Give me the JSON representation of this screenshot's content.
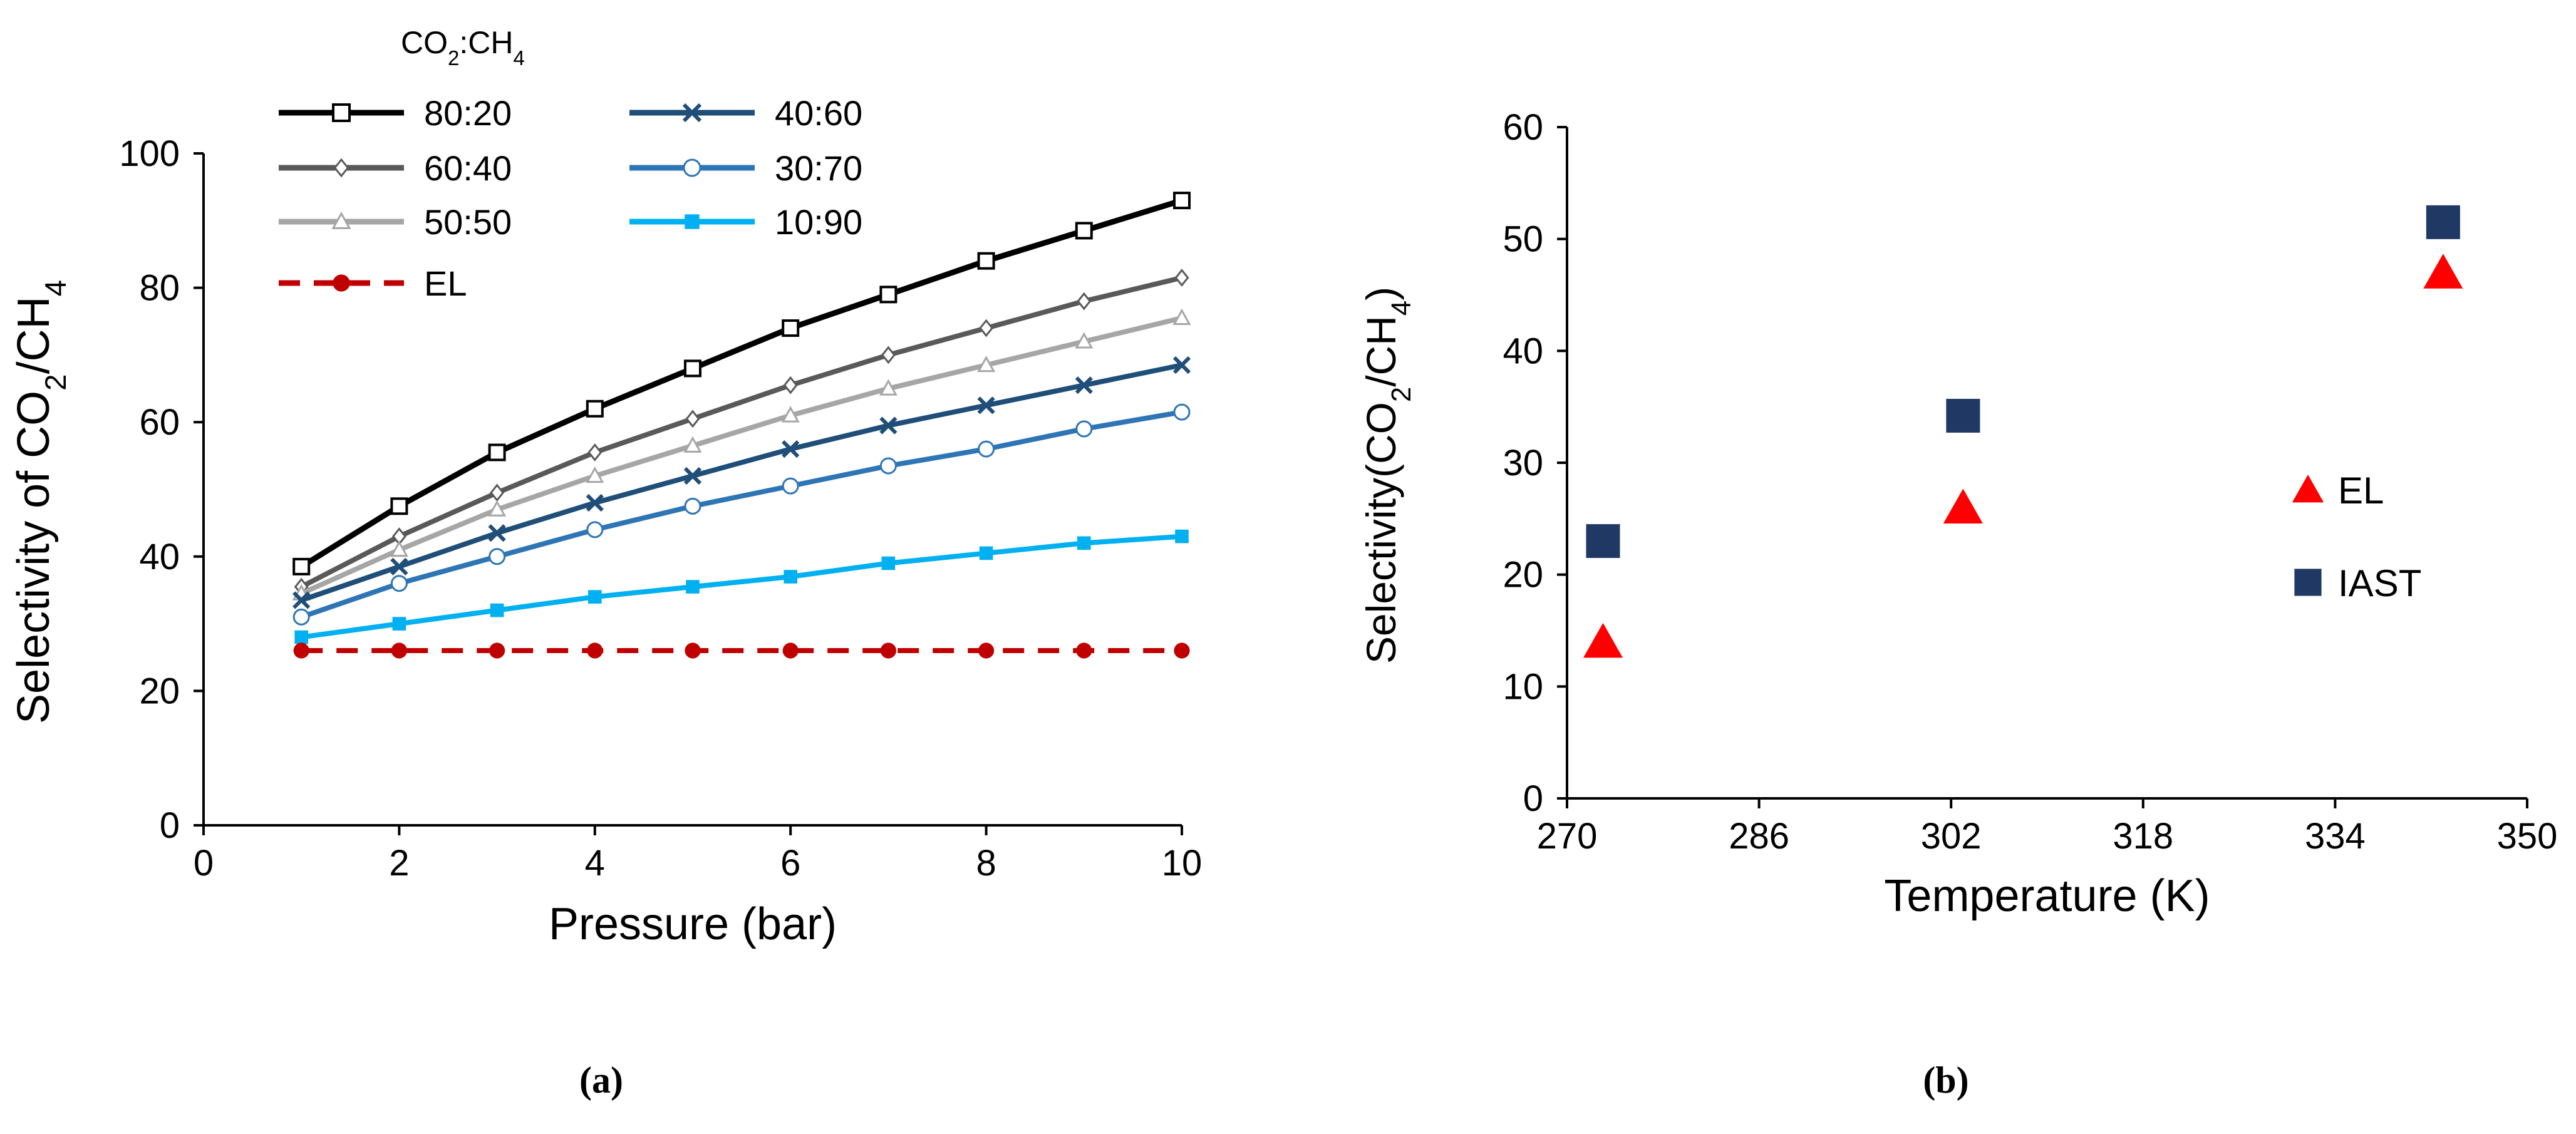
{
  "chart_data": [
    {
      "type": "line",
      "panel_label": "(a)",
      "xlabel": "Pressure (bar)",
      "ylabel": "Selectivity of CO2/CH4",
      "xlim": [
        0,
        10
      ],
      "ylim": [
        0,
        100
      ],
      "xticks": [
        0,
        2,
        4,
        6,
        8,
        10
      ],
      "yticks": [
        0,
        20,
        40,
        60,
        80,
        100
      ],
      "legend_title": "CO2:CH4",
      "legend_placement": "top-left",
      "x": [
        1,
        2,
        3,
        4,
        5,
        6,
        7,
        8,
        9,
        10
      ],
      "series": [
        {
          "name": "80:20",
          "color": "#000000",
          "marker": "square-open",
          "dash": false,
          "values": [
            38.5,
            47.5,
            55.5,
            62,
            68,
            74,
            79,
            84,
            88.5,
            93
          ]
        },
        {
          "name": "60:40",
          "color": "#595959",
          "marker": "diamond-open",
          "dash": false,
          "values": [
            35.5,
            43,
            49.5,
            55.5,
            60.5,
            65.5,
            70,
            74,
            78,
            81.5
          ]
        },
        {
          "name": "50:50",
          "color": "#a6a6a6",
          "marker": "triangle-open",
          "dash": false,
          "values": [
            34.5,
            41,
            47,
            52,
            56.5,
            61,
            65,
            68.5,
            72,
            75.5
          ]
        },
        {
          "name": "40:60",
          "color": "#1f4e79",
          "marker": "x",
          "dash": false,
          "values": [
            33.5,
            38.5,
            43.5,
            48,
            52,
            56,
            59.5,
            62.5,
            65.5,
            68.5
          ]
        },
        {
          "name": "30:70",
          "color": "#2e75b6",
          "marker": "circle-open",
          "dash": false,
          "values": [
            31,
            36,
            40,
            44,
            47.5,
            50.5,
            53.5,
            56,
            59,
            61.5
          ]
        },
        {
          "name": "10:90",
          "color": "#00b0f0",
          "marker": "square-filled",
          "dash": false,
          "values": [
            28,
            30,
            32,
            34,
            35.5,
            37,
            39,
            40.5,
            42,
            43
          ]
        },
        {
          "name": "EL",
          "color": "#c00000",
          "marker": "circle-filled",
          "dash": true,
          "values": [
            26,
            26,
            26,
            26,
            26,
            26,
            26,
            26,
            26,
            26
          ]
        }
      ]
    },
    {
      "type": "scatter",
      "panel_label": "(b)",
      "xlabel": "Temperature (K)",
      "ylabel": "Selectivity(CO2/CH4)",
      "xlim": [
        270,
        350
      ],
      "ylim": [
        0,
        60
      ],
      "xticks": [
        270,
        286,
        302,
        318,
        334,
        350
      ],
      "yticks": [
        0,
        10,
        20,
        30,
        40,
        50,
        60
      ],
      "legend_placement": "right",
      "series": [
        {
          "name": "EL",
          "color": "#ff0000",
          "marker": "triangle-filled",
          "points": [
            [
              273,
              14
            ],
            [
              303,
              26
            ],
            [
              343,
              47
            ]
          ]
        },
        {
          "name": "IAST",
          "color": "#1f3864",
          "marker": "square-filled",
          "points": [
            [
              273,
              23
            ],
            [
              303,
              34.2
            ],
            [
              343,
              51.5
            ]
          ]
        }
      ]
    }
  ]
}
